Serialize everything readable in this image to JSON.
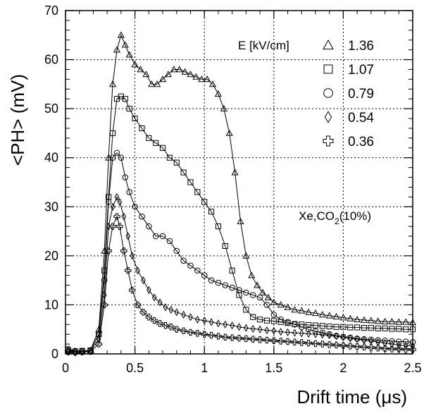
{
  "chart_data": {
    "type": "line",
    "title": "",
    "xlabel": "Drift time (μs)",
    "ylabel": "<PH> (mV)",
    "xlim": [
      0,
      2.5
    ],
    "ylim": [
      0,
      70
    ],
    "xticks": [
      "0",
      "0.5",
      "1",
      "1.5",
      "2",
      "2.5"
    ],
    "yticks": [
      "0",
      "10",
      "20",
      "30",
      "40",
      "50",
      "60",
      "70"
    ],
    "grid": true,
    "legend_position": "top-right",
    "legend_title": "E [kV/cm]",
    "gas_annotation": {
      "prefix": "Xe,CO",
      "subscript": "2",
      "suffix": "(10%)"
    },
    "series": [
      {
        "name": "1.36",
        "marker": "triangle",
        "x": [
          0.02,
          0.07,
          0.12,
          0.18,
          0.24,
          0.28,
          0.31,
          0.34,
          0.37,
          0.4,
          0.43,
          0.46,
          0.5,
          0.54,
          0.58,
          0.62,
          0.66,
          0.7,
          0.74,
          0.78,
          0.82,
          0.86,
          0.9,
          0.94,
          0.98,
          1.02,
          1.06,
          1.1,
          1.14,
          1.18,
          1.22,
          1.26,
          1.3,
          1.34,
          1.38,
          1.42,
          1.46,
          1.5,
          1.55,
          1.6,
          1.65,
          1.7,
          1.75,
          1.8,
          1.85,
          1.9,
          1.95,
          2.0,
          2.05,
          2.1,
          2.15,
          2.2,
          2.25,
          2.3,
          2.35,
          2.4,
          2.45,
          2.5
        ],
        "values": [
          0.8,
          0.5,
          0.6,
          0.7,
          5,
          21,
          40,
          55,
          62,
          65,
          63,
          61,
          59,
          58,
          57,
          55,
          55,
          56,
          57,
          58,
          58,
          57.5,
          57,
          56.5,
          56,
          56,
          55,
          53,
          50,
          45,
          37,
          27,
          20,
          16,
          14,
          12.5,
          11.5,
          10.5,
          10,
          9.5,
          9,
          8.8,
          8.5,
          8.3,
          8,
          7.8,
          7.6,
          7.4,
          7.2,
          7,
          6.9,
          6.8,
          6.7,
          6.6,
          6.6,
          6.5,
          6.5,
          6.4
        ]
      },
      {
        "name": "1.07",
        "marker": "square",
        "x": [
          0.02,
          0.07,
          0.12,
          0.18,
          0.24,
          0.28,
          0.31,
          0.34,
          0.37,
          0.4,
          0.43,
          0.46,
          0.5,
          0.55,
          0.6,
          0.65,
          0.7,
          0.75,
          0.8,
          0.85,
          0.9,
          0.95,
          1.0,
          1.05,
          1.1,
          1.15,
          1.2,
          1.25,
          1.3,
          1.35,
          1.4,
          1.45,
          1.5,
          1.55,
          1.6,
          1.65,
          1.7,
          1.75,
          1.8,
          1.85,
          1.9,
          1.95,
          2.0,
          2.05,
          2.1,
          2.15,
          2.2,
          2.25,
          2.3,
          2.35,
          2.4,
          2.45,
          2.5
        ],
        "values": [
          0.7,
          0.5,
          0.6,
          0.7,
          4,
          17,
          32,
          45,
          52,
          52.5,
          52,
          50,
          48,
          46,
          44,
          43,
          42,
          40,
          39,
          37,
          35,
          33,
          31,
          29,
          26,
          22,
          17,
          12,
          9,
          7.5,
          7,
          6.8,
          6.7,
          6.5,
          6.3,
          6.1,
          6,
          5.9,
          5.8,
          5.7,
          5.6,
          5.5,
          5.5,
          5.4,
          5.4,
          5.3,
          5.3,
          5.2,
          5.2,
          5.1,
          5.1,
          5,
          5
        ]
      },
      {
        "name": "0.79",
        "marker": "circle",
        "x": [
          0.02,
          0.07,
          0.12,
          0.18,
          0.24,
          0.28,
          0.31,
          0.34,
          0.37,
          0.4,
          0.43,
          0.46,
          0.5,
          0.55,
          0.6,
          0.65,
          0.7,
          0.75,
          0.8,
          0.85,
          0.9,
          0.95,
          1.0,
          1.05,
          1.1,
          1.15,
          1.2,
          1.25,
          1.3,
          1.35,
          1.4,
          1.45,
          1.5,
          1.55,
          1.6,
          1.65,
          1.7,
          1.75,
          1.8,
          1.85,
          1.9,
          1.95,
          2.0,
          2.05,
          2.1,
          2.15,
          2.2,
          2.25,
          2.3,
          2.35,
          2.4,
          2.45,
          2.5
        ],
        "values": [
          1,
          0.6,
          0.6,
          0.7,
          4,
          15,
          31,
          40,
          41,
          40,
          36,
          33,
          30,
          28,
          26,
          24,
          24,
          23,
          21,
          19,
          18,
          17,
          16,
          15,
          14.5,
          14,
          13.5,
          13,
          12.5,
          12,
          11.5,
          10,
          8,
          7,
          6.5,
          6,
          5.5,
          5,
          4.6,
          4.3,
          4,
          3.7,
          3.5,
          3.3,
          3.1,
          3,
          2.9,
          2.8,
          2.7,
          2.6,
          2.5,
          2.5,
          2.4
        ]
      },
      {
        "name": "0.54",
        "marker": "diamond",
        "x": [
          0.02,
          0.07,
          0.12,
          0.18,
          0.24,
          0.28,
          0.31,
          0.34,
          0.37,
          0.39,
          0.42,
          0.45,
          0.48,
          0.52,
          0.56,
          0.6,
          0.64,
          0.68,
          0.72,
          0.76,
          0.8,
          0.85,
          0.9,
          0.95,
          1.0,
          1.05,
          1.1,
          1.15,
          1.2,
          1.25,
          1.3,
          1.35,
          1.4,
          1.45,
          1.5,
          1.55,
          1.6,
          1.65,
          1.7,
          1.75,
          1.8,
          1.85,
          1.9,
          1.95,
          2.0,
          2.05,
          2.1,
          2.15,
          2.2,
          2.25,
          2.3,
          2.35,
          2.4,
          2.45,
          2.5
        ],
        "values": [
          0.5,
          0.4,
          0.5,
          0.6,
          3,
          12,
          26,
          30,
          32,
          31,
          28,
          24,
          20,
          17,
          15,
          13,
          11.5,
          10.5,
          9.5,
          9,
          8.5,
          8,
          7.5,
          7,
          6.8,
          6.5,
          6.2,
          6,
          5.8,
          5.5,
          5.3,
          5.1,
          5,
          4.8,
          4.7,
          4.5,
          4.4,
          4.3,
          4.2,
          4.1,
          4,
          3.9,
          3.8,
          3.6,
          3.4,
          3.2,
          3,
          2.8,
          2.6,
          2.4,
          2.2,
          2,
          1.8,
          1.7,
          1.6
        ]
      },
      {
        "name": "0.36",
        "marker": "cross",
        "x": [
          0.02,
          0.07,
          0.12,
          0.18,
          0.24,
          0.28,
          0.31,
          0.34,
          0.37,
          0.39,
          0.42,
          0.45,
          0.48,
          0.52,
          0.56,
          0.6,
          0.64,
          0.68,
          0.72,
          0.76,
          0.8,
          0.85,
          0.9,
          0.95,
          1.0,
          1.05,
          1.1,
          1.15,
          1.2,
          1.25,
          1.3,
          1.35,
          1.4,
          1.45,
          1.5,
          1.55,
          1.6,
          1.65,
          1.7,
          1.75,
          1.8,
          1.85,
          1.9,
          1.95,
          2.0,
          2.05,
          2.1,
          2.15,
          2.2,
          2.25,
          2.3,
          2.35,
          2.4,
          2.45,
          2.5
        ],
        "values": [
          0.4,
          0.3,
          0.4,
          0.5,
          2,
          10,
          21,
          26,
          28,
          26,
          21,
          17,
          13,
          10,
          8.5,
          7.5,
          6.8,
          6.2,
          5.8,
          5.5,
          5,
          4.7,
          4.4,
          4.2,
          4,
          3.8,
          3.6,
          3.4,
          3.3,
          3.2,
          3.1,
          3,
          2.9,
          2.8,
          2.7,
          2.6,
          2.5,
          2.4,
          2.3,
          2.2,
          2.1,
          2,
          1.9,
          1.8,
          1.7,
          1.6,
          1.5,
          1.4,
          1.3,
          1.2,
          1.1,
          1,
          1,
          0.9,
          0.9
        ]
      }
    ]
  }
}
